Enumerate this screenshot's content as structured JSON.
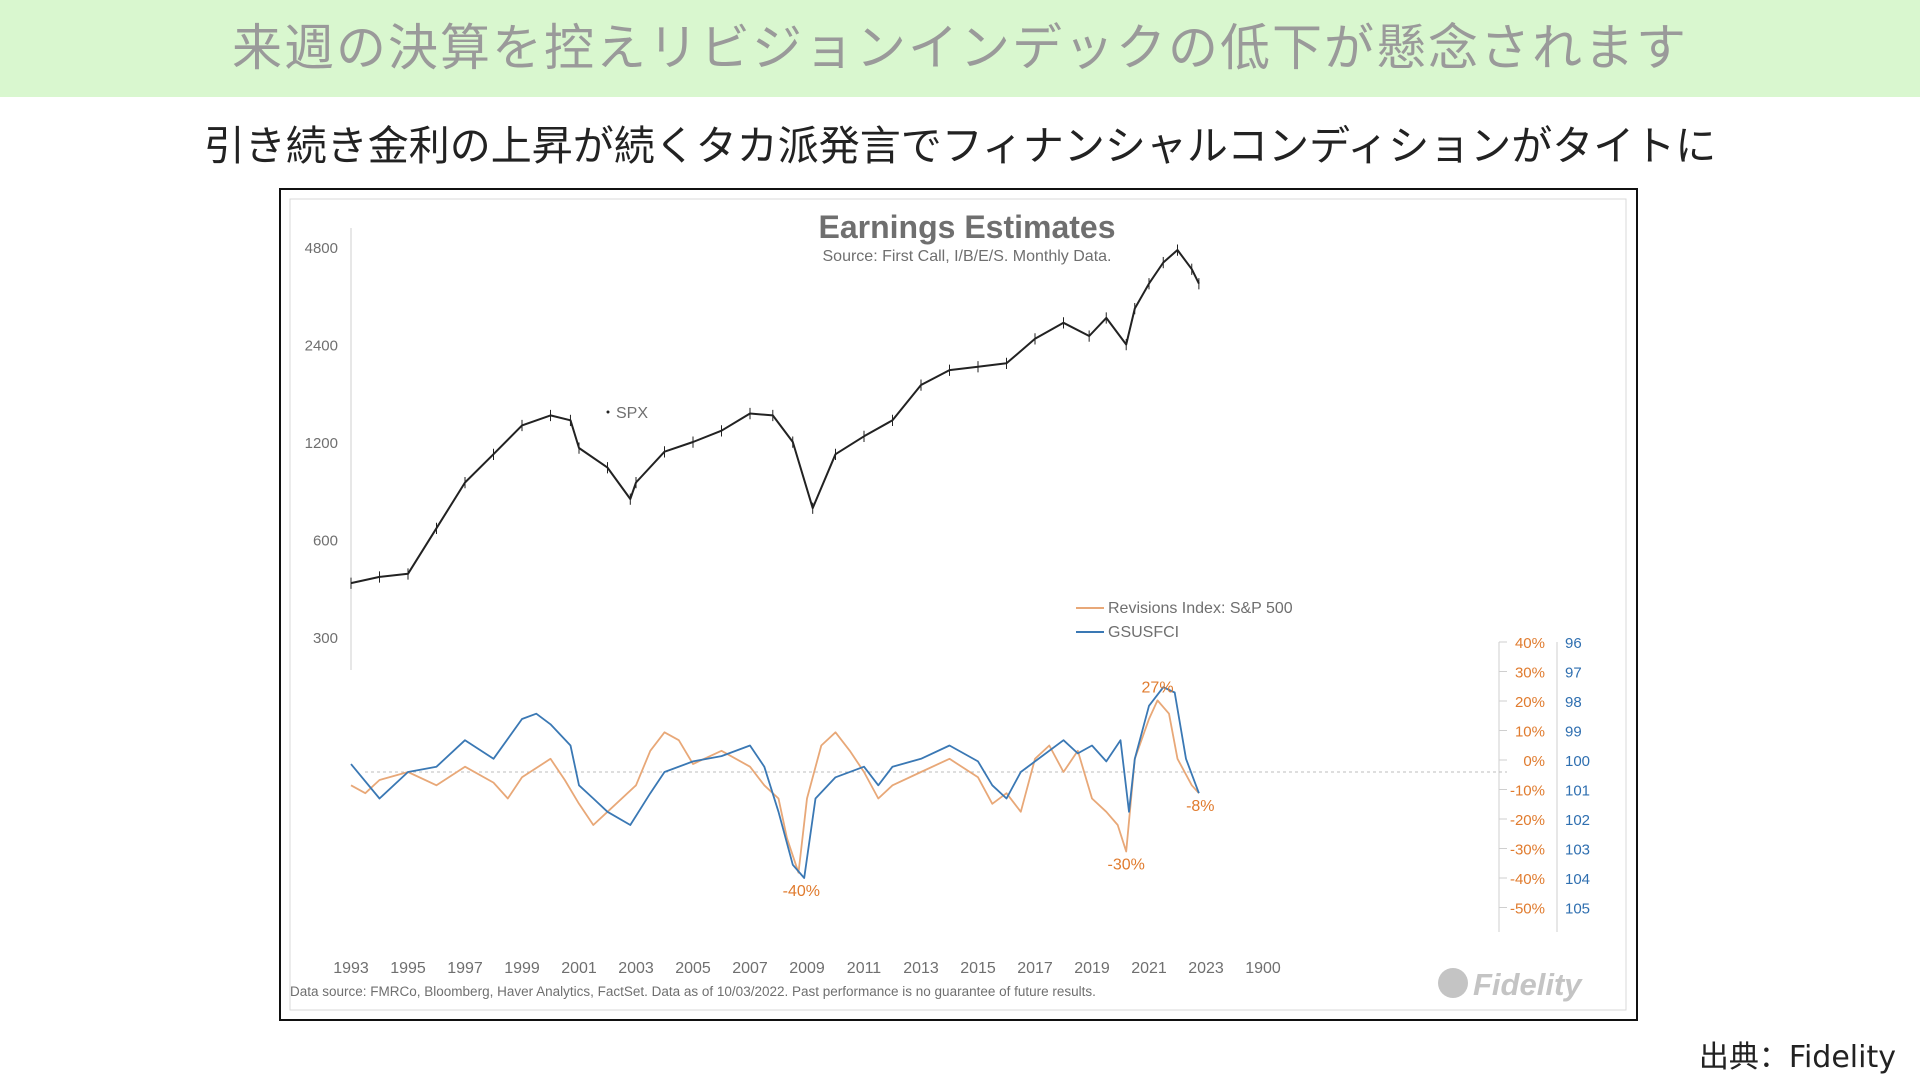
{
  "banner": {
    "title": "来週の決算を控えリビジョンインデックの低下が懸念されます"
  },
  "subtitle": "引き続き金利の上昇が続くタカ派発言でフィナンシャルコンディションがタイトに",
  "credit": "出典：Fidelity",
  "colors": {
    "banner_bg": "#d9f7cf",
    "spx": "#222222",
    "revisions": "#e8a878",
    "gsusfci": "#3a78b4",
    "right_pct": "#e07b2e",
    "right_fci": "#2f6fb0"
  },
  "chart_data": {
    "type": "line",
    "title": "Earnings Estimates",
    "subtitle": "Source: First Call, I/B/E/S. Monthly Data.",
    "footnote": "Data source: FMRCo, Bloomberg, Haver Analytics, FactSet. Data as of 10/03/2022. Past performance is no guarantee of future results.",
    "logo_text": "Fidelity",
    "x_ticks": [
      "1993",
      "1995",
      "1997",
      "1999",
      "2001",
      "2003",
      "2005",
      "2007",
      "2009",
      "2011",
      "2013",
      "2015",
      "2017",
      "2019",
      "2021",
      "2023",
      "1900"
    ],
    "left_axis": {
      "scale": "log",
      "ticks": [
        4800,
        2400,
        1200,
        600,
        300
      ]
    },
    "right_axis_pct": {
      "ticks": [
        "40%",
        "30%",
        "20%",
        "10%",
        "0%",
        "-10%",
        "-20%",
        "-30%",
        "-40%",
        "-50%"
      ],
      "ylim": [
        -50,
        40
      ]
    },
    "right_axis_fci": {
      "ticks": [
        "96",
        "97",
        "98",
        "99",
        "100",
        "101",
        "102",
        "103",
        "104",
        "105"
      ],
      "inverted": true
    },
    "legend": [
      "Revisions Index: S&P 500",
      "GSUSFCI"
    ],
    "spx_label": "SPX",
    "annotations": [
      {
        "text": "27%",
        "x": 2021.3,
        "y": 27
      },
      {
        "text": "-40%",
        "x": 2008.8,
        "y": -40
      },
      {
        "text": "-30%",
        "x": 2020.2,
        "y": -30
      },
      {
        "text": "-8%",
        "x": 2022.8,
        "y": -8
      }
    ],
    "series": [
      {
        "name": "SPX",
        "axis": "left",
        "x": [
          1993,
          1994,
          1995,
          1996,
          1997,
          1998,
          1999,
          2000,
          2000.7,
          2001,
          2002,
          2002.8,
          2003,
          2004,
          2005,
          2006,
          2007,
          2007.8,
          2008.5,
          2009.2,
          2010,
          2011,
          2012,
          2013,
          2014,
          2015,
          2016,
          2017,
          2018,
          2018.9,
          2019.5,
          2020.2,
          2020.5,
          2021,
          2021.5,
          2022,
          2022.5,
          2022.75
        ],
        "y": [
          440,
          460,
          470,
          650,
          900,
          1100,
          1350,
          1450,
          1400,
          1150,
          1000,
          800,
          900,
          1120,
          1200,
          1300,
          1470,
          1450,
          1200,
          750,
          1100,
          1250,
          1400,
          1800,
          2000,
          2050,
          2100,
          2500,
          2800,
          2550,
          2900,
          2400,
          3100,
          3700,
          4300,
          4700,
          4100,
          3700
        ]
      },
      {
        "name": "Revisions Index: S&P 500",
        "axis": "pct",
        "x": [
          1993,
          1993.5,
          1994,
          1995,
          1996,
          1997,
          1998,
          1998.5,
          1999,
          2000,
          2000.5,
          2001,
          2001.5,
          2002,
          2003,
          2003.5,
          2004,
          2004.5,
          2005,
          2006,
          2007,
          2007.5,
          2008,
          2008.3,
          2008.7,
          2009,
          2009.5,
          2010,
          2010.5,
          2011,
          2011.5,
          2012,
          2013,
          2014,
          2015,
          2015.5,
          2016,
          2016.5,
          2017,
          2017.5,
          2018,
          2018.5,
          2019,
          2019.5,
          2019.9,
          2020.2,
          2020.5,
          2021,
          2021.3,
          2021.7,
          2022,
          2022.5,
          2022.75
        ],
        "y": [
          -5,
          -8,
          -3,
          0,
          -5,
          2,
          -4,
          -10,
          -2,
          5,
          -3,
          -12,
          -20,
          -15,
          -5,
          8,
          15,
          12,
          3,
          8,
          2,
          -5,
          -10,
          -25,
          -38,
          -10,
          10,
          15,
          8,
          0,
          -10,
          -5,
          0,
          5,
          -2,
          -12,
          -8,
          -15,
          5,
          10,
          0,
          8,
          -10,
          -15,
          -20,
          -30,
          5,
          20,
          27,
          22,
          5,
          -5,
          -8
        ]
      },
      {
        "name": "GSUSFCI",
        "axis": "fci",
        "x": [
          1993,
          1994,
          1995,
          1996,
          1997,
          1998,
          1999,
          1999.5,
          2000,
          2000.7,
          2001,
          2001.5,
          2002,
          2002.8,
          2003.5,
          2004,
          2005,
          2006,
          2007,
          2007.5,
          2008,
          2008.5,
          2008.9,
          2009.3,
          2010,
          2011,
          2011.5,
          2012,
          2013,
          2014,
          2015,
          2015.5,
          2016,
          2016.5,
          2017,
          2018,
          2018.5,
          2019,
          2019.5,
          2020,
          2020.3,
          2020.5,
          2021,
          2021.5,
          2021.9,
          2022.3,
          2022.75
        ],
        "y": [
          99.7,
          101.0,
          100.0,
          99.8,
          98.8,
          99.5,
          98.0,
          97.8,
          98.2,
          99.0,
          100.5,
          101.0,
          101.5,
          102.0,
          100.8,
          100.0,
          99.6,
          99.4,
          99.0,
          99.8,
          101.5,
          103.5,
          104.0,
          101.0,
          100.2,
          99.8,
          100.5,
          99.8,
          99.5,
          99.0,
          99.6,
          100.5,
          101.0,
          100.0,
          99.6,
          98.8,
          99.3,
          99.0,
          99.6,
          98.8,
          101.5,
          99.5,
          97.5,
          96.8,
          97.0,
          99.5,
          100.8
        ]
      }
    ]
  }
}
